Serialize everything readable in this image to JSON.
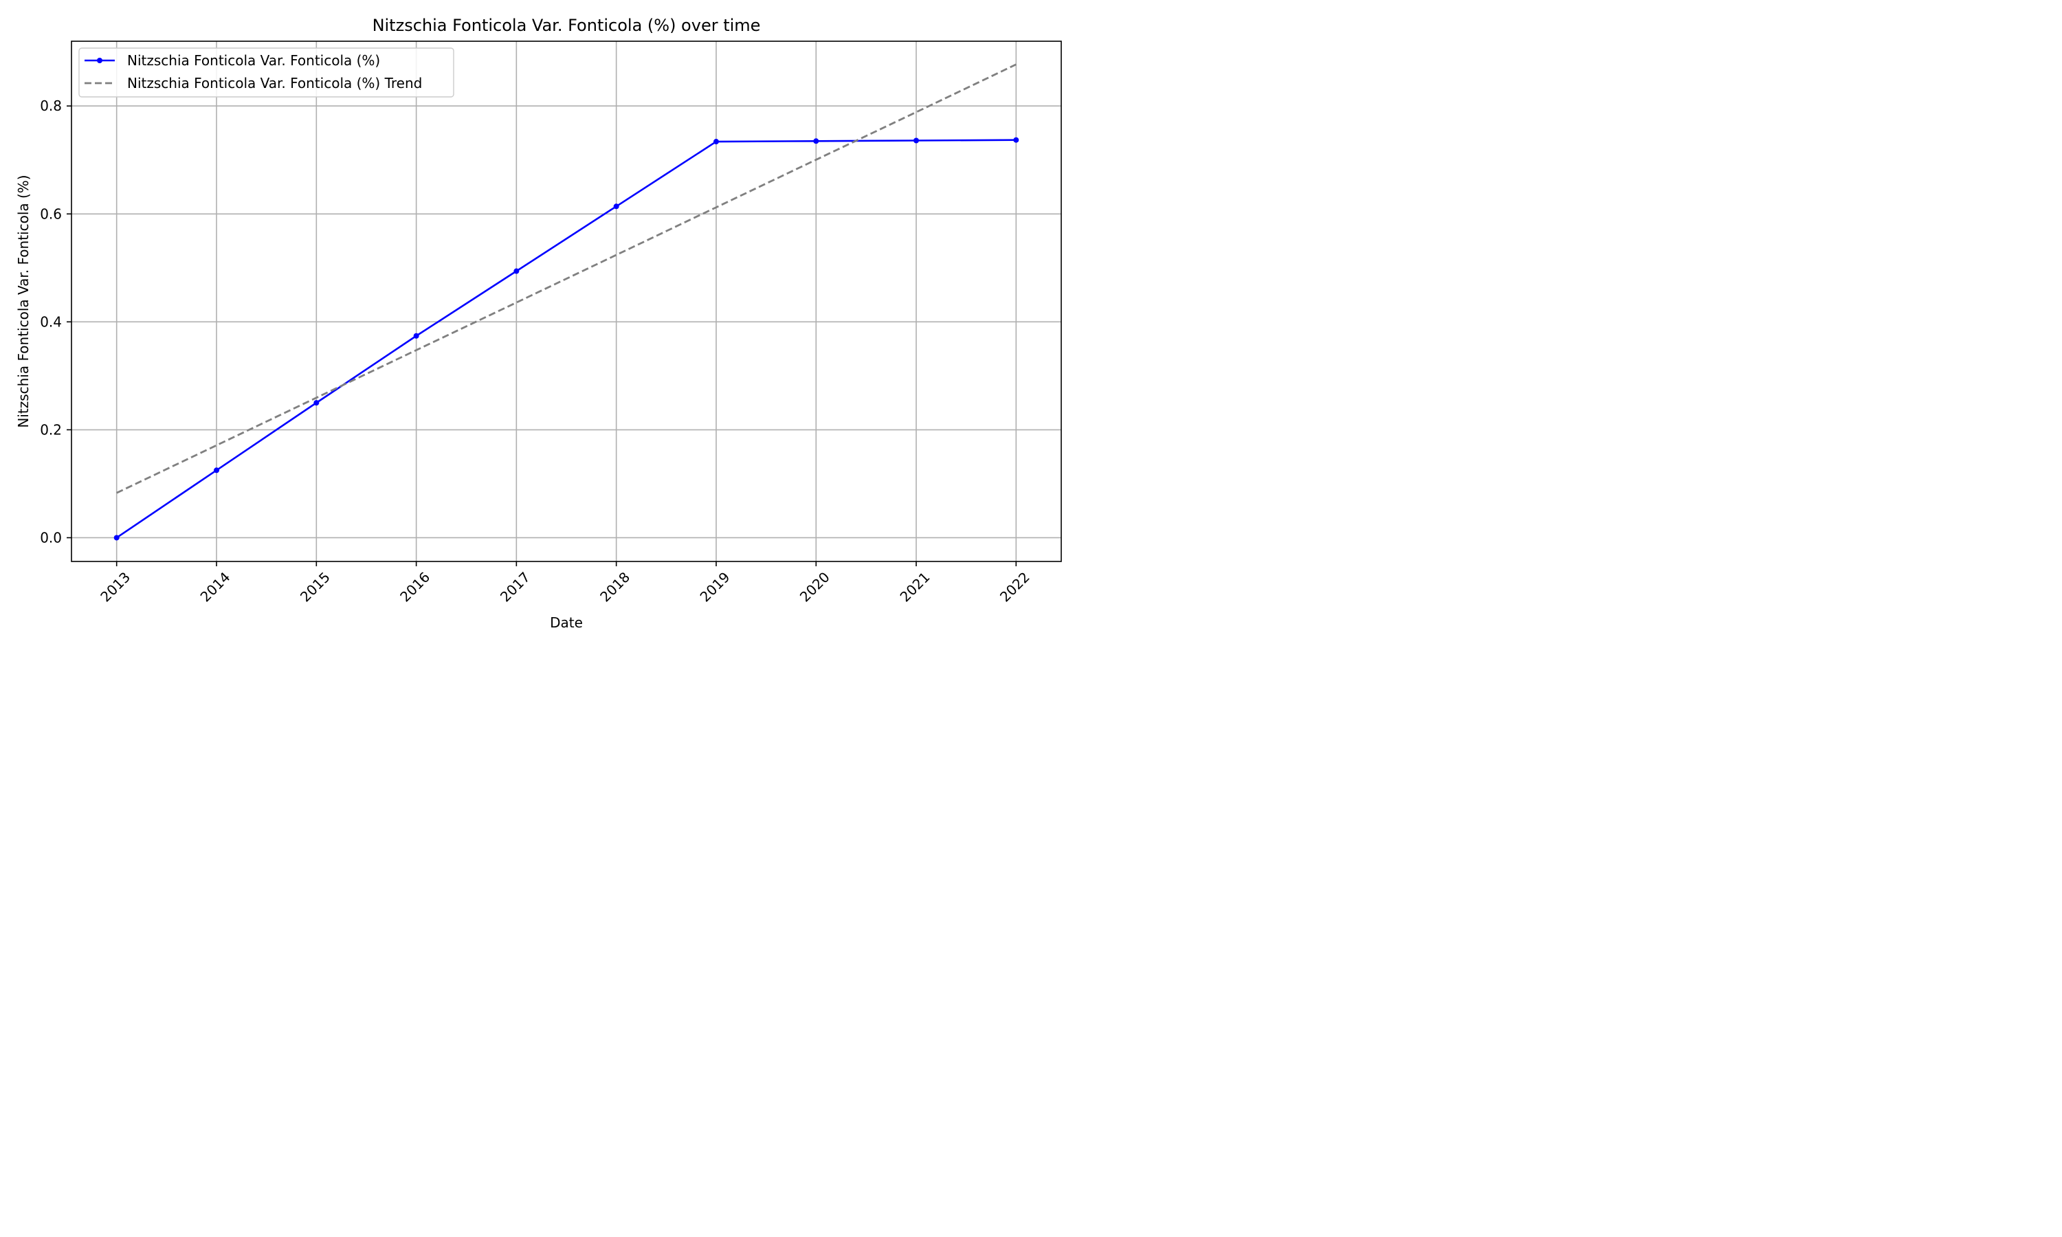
{
  "chart_data": {
    "type": "line",
    "title": "Nitzschia Fonticola Var. Fonticola (%) over time",
    "xlabel": "Date",
    "ylabel": "Nitzschia Fonticola Var. Fonticola (%)",
    "x": [
      "2013",
      "2014",
      "2015",
      "2016",
      "2017",
      "2018",
      "2019",
      "2020",
      "2021",
      "2022"
    ],
    "x_tick_labels": [
      "2013",
      "2014",
      "2015",
      "2016",
      "2017",
      "2018",
      "2019",
      "2020",
      "2021",
      "2022"
    ],
    "y_tick_labels": [
      "0.0",
      "0.2",
      "0.4",
      "0.6",
      "0.8"
    ],
    "y_ticks": [
      0.0,
      0.2,
      0.4,
      0.6,
      0.8
    ],
    "ylim": [
      -0.044,
      0.92
    ],
    "xlim": [
      "2012-07-20",
      "2022-06-15"
    ],
    "grid": true,
    "legend_position": "top-left",
    "series": [
      {
        "name": "Nitzschia Fonticola Var. Fonticola (%)",
        "style": "solid-with-markers",
        "color": "#0000ff",
        "values": [
          0.0,
          0.125,
          0.25,
          0.374,
          0.494,
          0.614,
          0.734,
          0.735,
          0.736,
          0.737
        ]
      },
      {
        "name": "Nitzschia Fonticola Var. Fonticola (%) Trend",
        "style": "dashed",
        "color": "#808080",
        "values": [
          0.083,
          0.1712,
          0.2594,
          0.3476,
          0.4358,
          0.524,
          0.6122,
          0.7004,
          0.7886,
          0.877
        ]
      }
    ]
  }
}
